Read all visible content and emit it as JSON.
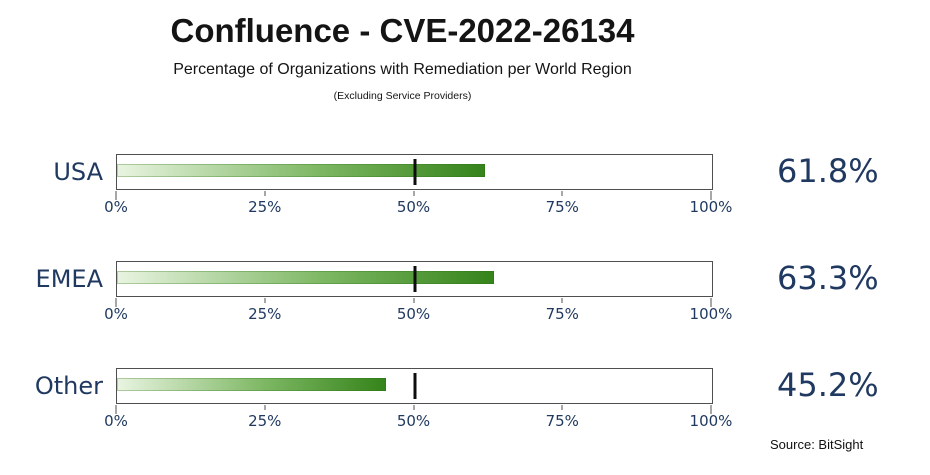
{
  "header": {
    "title": "Confluence - CVE-2022-26134",
    "subtitle": "Percentage of Organizations with Remediation per World Region",
    "note": "(Excluding Service Providers)"
  },
  "source": "Source: BitSight",
  "chart_data": {
    "type": "bar",
    "orientation": "horizontal",
    "categories": [
      "USA",
      "EMEA",
      "Other"
    ],
    "values": [
      61.8,
      63.3,
      45.2
    ],
    "value_labels": [
      "61.8%",
      "63.3%",
      "45.2%"
    ],
    "axis_ticks": [
      0,
      25,
      50,
      75,
      100
    ],
    "axis_tick_labels": [
      "0%",
      "25%",
      "50%",
      "75%",
      "100%"
    ],
    "xlim": [
      0,
      100
    ],
    "reference_line": 50,
    "grid": false,
    "legend": false,
    "colors": {
      "bar_gradient_start": "#e9f4e1",
      "bar_gradient_end": "#35831a",
      "reference_line": "#0d0d0d",
      "track_border": "#4f4f4f",
      "label_text": "#203960",
      "title_text": "#141414"
    }
  }
}
